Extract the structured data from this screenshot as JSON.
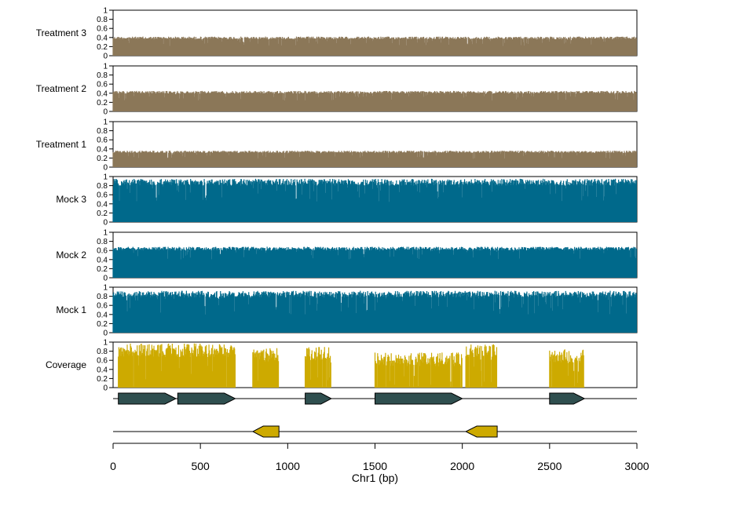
{
  "chart_data": {
    "type": "bar",
    "chromosome": "Chr1",
    "xlabel": "Chr1 (bp)",
    "xlim": [
      0,
      3000
    ],
    "x_ticks": [
      0,
      500,
      1000,
      1500,
      2000,
      2500,
      3000
    ],
    "y_ticks": [
      "0",
      "0.2",
      "0.4",
      "0.6",
      "0.8",
      "1"
    ],
    "tracks": [
      {
        "label": "Treatment 3",
        "color": "#8b7758",
        "ylim": [
          0,
          1
        ],
        "typical": 0.42,
        "spread": 0.06
      },
      {
        "label": "Treatment 2",
        "color": "#8b7758",
        "ylim": [
          0,
          1
        ],
        "typical": 0.45,
        "spread": 0.06
      },
      {
        "label": "Treatment 1",
        "color": "#8b7758",
        "ylim": [
          0,
          1
        ],
        "typical": 0.36,
        "spread": 0.05
      },
      {
        "label": "Mock 3",
        "color": "#00698b",
        "ylim": [
          0,
          1
        ],
        "typical": 0.95,
        "spread": 0.15
      },
      {
        "label": "Mock 2",
        "color": "#00698b",
        "ylim": [
          0,
          1
        ],
        "typical": 0.68,
        "spread": 0.08
      },
      {
        "label": "Mock 1",
        "color": "#00698b",
        "ylim": [
          0,
          1
        ],
        "typical": 0.92,
        "spread": 0.15
      }
    ],
    "coverage": {
      "label": "Coverage",
      "color": "#cdaa00",
      "ylim": [
        0,
        1
      ],
      "regions": [
        {
          "start": 30,
          "end": 700,
          "typical": 0.85
        },
        {
          "start": 800,
          "end": 950,
          "typical": 0.75
        },
        {
          "start": 1100,
          "end": 1250,
          "typical": 0.78
        },
        {
          "start": 1500,
          "end": 2000,
          "typical": 0.65
        },
        {
          "start": 2020,
          "end": 2200,
          "typical": 0.85
        },
        {
          "start": 2500,
          "end": 2700,
          "typical": 0.72
        }
      ]
    },
    "genes_forward": {
      "color": "#2f4f4f",
      "genes": [
        {
          "start": 30,
          "end": 360
        },
        {
          "start": 370,
          "end": 700
        },
        {
          "start": 1100,
          "end": 1250
        },
        {
          "start": 1500,
          "end": 2000
        },
        {
          "start": 2500,
          "end": 2700
        }
      ]
    },
    "genes_reverse": {
      "color": "#cdaa00",
      "genes": [
        {
          "start": 800,
          "end": 950
        },
        {
          "start": 2020,
          "end": 2200
        }
      ]
    }
  }
}
